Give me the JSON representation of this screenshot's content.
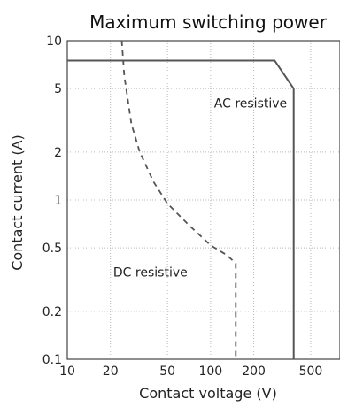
{
  "chart_data": {
    "type": "line",
    "title": "Maximum switching power",
    "xlabel": "Contact voltage (V)",
    "ylabel": "Contact current (A)",
    "x_scale": "log",
    "y_scale": "log",
    "xlim": [
      10,
      800
    ],
    "ylim": [
      0.1,
      10
    ],
    "x_ticks": [
      10,
      20,
      50,
      100,
      200,
      500
    ],
    "x_tick_labels": [
      "10",
      "20",
      "50",
      "100",
      "200",
      "500"
    ],
    "y_ticks": [
      0.1,
      0.2,
      0.5,
      1,
      2,
      5,
      10
    ],
    "y_tick_labels": [
      "0.1",
      "0.2",
      "0.5",
      "1",
      "2",
      "5",
      "10"
    ],
    "grid": true,
    "series": [
      {
        "name": "AC resistive",
        "style": "solid",
        "points": [
          [
            10,
            7.5
          ],
          [
            280,
            7.5
          ],
          [
            380,
            5
          ],
          [
            380,
            0.1
          ]
        ]
      },
      {
        "name": "DC resistive",
        "style": "dashed",
        "points": [
          [
            24,
            10
          ],
          [
            25,
            6
          ],
          [
            28,
            3
          ],
          [
            32,
            2
          ],
          [
            40,
            1.3
          ],
          [
            50,
            0.95
          ],
          [
            70,
            0.7
          ],
          [
            100,
            0.52
          ],
          [
            130,
            0.45
          ],
          [
            150,
            0.4
          ],
          [
            150,
            0.1
          ]
        ]
      }
    ],
    "annotations": [
      {
        "text": "AC resistive",
        "x": 190,
        "y": 3.8
      },
      {
        "text": "DC resistive",
        "x": 38,
        "y": 0.33
      }
    ]
  }
}
